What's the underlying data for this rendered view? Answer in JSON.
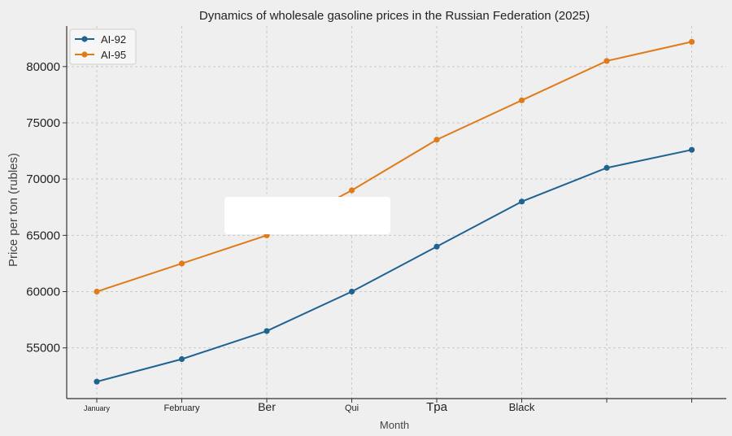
{
  "chart_data": {
    "type": "line",
    "title": "Dynamics of wholesale gasoline prices in the Russian Federation (2025)",
    "xlabel": "Month",
    "ylabel": "Price per ton (rubles)",
    "categories": [
      "January",
      "February",
      "Ber",
      "Qui",
      "Tpa",
      "Black",
      "",
      ""
    ],
    "series": [
      {
        "name": "AI-92",
        "color": "#1f6391",
        "values": [
          52000,
          54000,
          56500,
          60000,
          64000,
          68000,
          71000,
          72600
        ]
      },
      {
        "name": "AI-95",
        "color": "#e07b1a",
        "values": [
          60000,
          62500,
          65000,
          69000,
          73500,
          77000,
          80500,
          82200
        ]
      }
    ],
    "ylim": [
      50000,
      84000
    ],
    "yticks": [
      55000,
      60000,
      65000,
      70000,
      75000,
      80000
    ],
    "grid": true,
    "legend": "top-left"
  }
}
